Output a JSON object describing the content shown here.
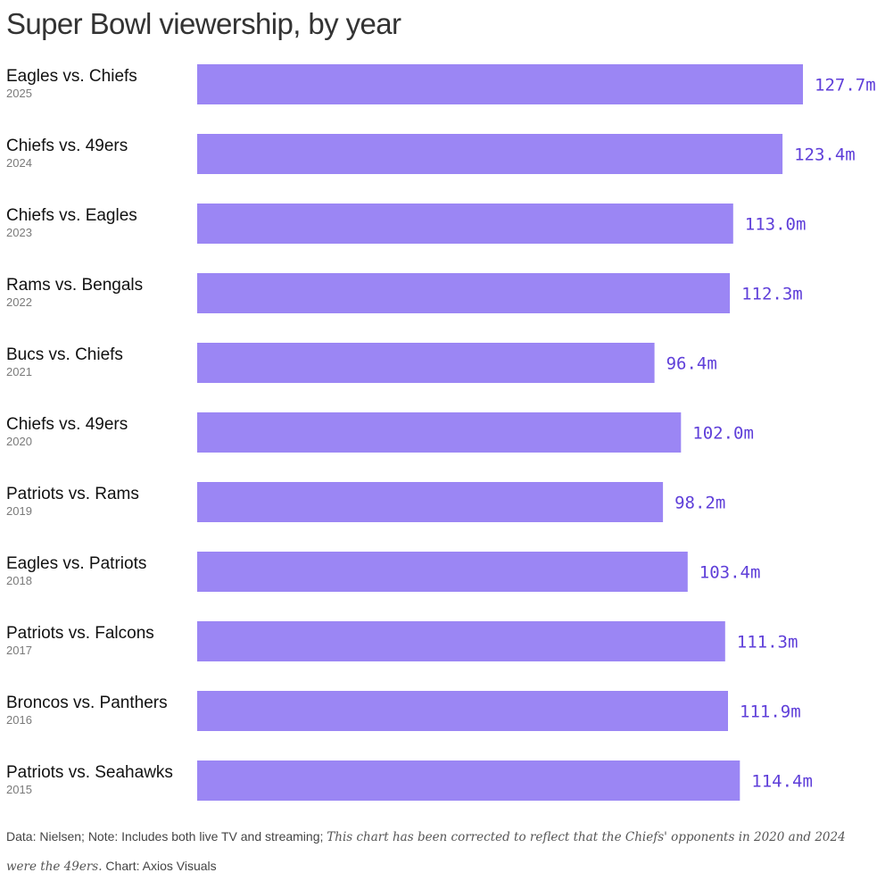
{
  "title": "Super Bowl viewership, by year",
  "colors": {
    "bar": "#9b86f4",
    "value_label": "#5f3fd9"
  },
  "chart_data": {
    "type": "bar",
    "orientation": "horizontal",
    "title": "Super Bowl viewership, by year",
    "categories": [
      {
        "matchup": "Eagles vs. Chiefs",
        "year": "2025"
      },
      {
        "matchup": "Chiefs vs. 49ers",
        "year": "2024"
      },
      {
        "matchup": "Chiefs vs. Eagles",
        "year": "2023"
      },
      {
        "matchup": "Rams vs. Bengals",
        "year": "2022"
      },
      {
        "matchup": "Bucs vs. Chiefs",
        "year": "2021"
      },
      {
        "matchup": "Chiefs vs. 49ers",
        "year": "2020"
      },
      {
        "matchup": "Patriots vs. Rams",
        "year": "2019"
      },
      {
        "matchup": "Eagles vs. Patriots",
        "year": "2018"
      },
      {
        "matchup": "Patriots vs. Falcons",
        "year": "2017"
      },
      {
        "matchup": "Broncos vs. Panthers",
        "year": "2016"
      },
      {
        "matchup": "Patriots vs. Seahawks",
        "year": "2015"
      }
    ],
    "values": [
      127.7,
      123.4,
      113.0,
      112.3,
      96.4,
      102.0,
      98.2,
      103.4,
      111.3,
      111.9,
      114.4
    ],
    "value_labels": [
      "127.7m",
      "123.4m",
      "113.0m",
      "112.3m",
      "96.4m",
      "102.0m",
      "98.2m",
      "103.4m",
      "111.3m",
      "111.9m",
      "114.4m"
    ],
    "unit": "m",
    "xlim": [
      0,
      127.7
    ],
    "grid": false,
    "legend": "none"
  },
  "footer": {
    "source": "Data: Nielsen; Note: Includes both live TV and streaming;",
    "correction": "This chart has been corrected to reflect that the Chiefs' opponents in 2020 and 2024 were the 49ers.",
    "credit": "Chart: Axios Visuals"
  }
}
